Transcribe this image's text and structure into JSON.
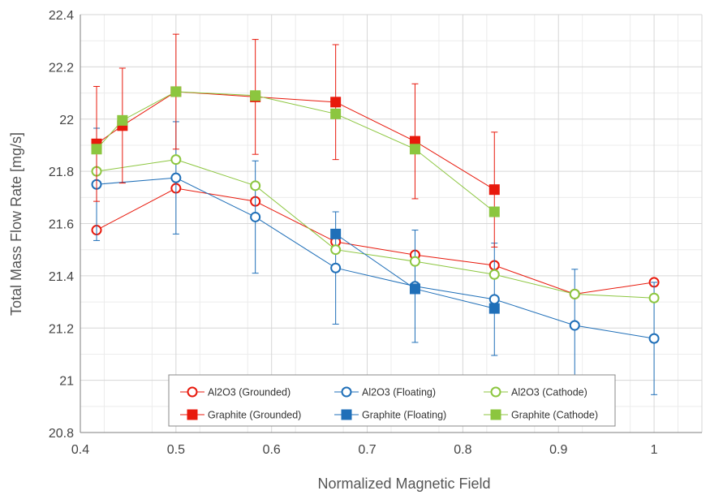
{
  "chart_data": {
    "type": "scatter",
    "title": "",
    "xlabel": "Normalized Magnetic Field",
    "ylabel": "Total Mass Flow Rate [mg/s]",
    "xlim": [
      0.4,
      1.05
    ],
    "ylim": [
      20.8,
      22.4
    ],
    "xticks": [
      0.4,
      0.5,
      0.6,
      0.7,
      0.8,
      0.9,
      1.0
    ],
    "xtick_labels": [
      "0.4",
      "0.5",
      "0.6",
      "0.7",
      "0.8",
      "0.9",
      "1"
    ],
    "yticks": [
      20.8,
      21.0,
      21.2,
      21.4,
      21.6,
      21.8,
      22.0,
      22.2,
      22.4
    ],
    "ytick_labels": [
      "20.8",
      "21",
      "21.2",
      "21.4",
      "21.6",
      "21.8",
      "22",
      "22.2",
      "22.4"
    ],
    "grid": true,
    "legend_position": "bottom-center",
    "series": [
      {
        "name": "Al2O3 (Grounded)",
        "color": "#e8190c",
        "marker": "open-circle",
        "x": [
          0.417,
          0.5,
          0.583,
          0.667,
          0.75,
          0.833,
          0.917,
          1.0
        ],
        "y": [
          21.575,
          21.735,
          21.685,
          21.53,
          21.48,
          21.44,
          21.33,
          21.375
        ],
        "err": [
          null,
          null,
          null,
          null,
          null,
          null,
          null,
          null
        ]
      },
      {
        "name": "Al2O3 (Floating)",
        "color": "#1f6fb8",
        "marker": "open-circle",
        "x": [
          0.417,
          0.5,
          0.583,
          0.667,
          0.75,
          0.833,
          0.917,
          1.0
        ],
        "y": [
          21.75,
          21.775,
          21.625,
          21.43,
          21.36,
          21.31,
          21.21,
          21.16
        ],
        "err": [
          0.215,
          0.215,
          0.215,
          0.215,
          0.215,
          0.215,
          0.215,
          0.215
        ]
      },
      {
        "name": "Al2O3 (Cathode)",
        "color": "#8cc63f",
        "marker": "open-circle",
        "x": [
          0.417,
          0.5,
          0.583,
          0.667,
          0.75,
          0.833,
          0.917,
          1.0
        ],
        "y": [
          21.8,
          21.845,
          21.745,
          21.5,
          21.455,
          21.405,
          21.33,
          21.315
        ],
        "err": [
          null,
          null,
          null,
          null,
          null,
          null,
          null,
          null
        ]
      },
      {
        "name": "Graphite (Grounded)",
        "color": "#e8190c",
        "marker": "filled-square",
        "x": [
          0.417,
          0.444,
          0.5,
          0.583,
          0.667,
          0.75,
          0.833
        ],
        "y": [
          21.905,
          21.975,
          22.105,
          22.085,
          22.065,
          21.915,
          21.73
        ],
        "err": [
          0.22,
          0.22,
          0.22,
          0.22,
          0.22,
          0.22,
          0.22
        ]
      },
      {
        "name": "Graphite (Floating)",
        "color": "#1f6fb8",
        "marker": "filled-square",
        "x": [
          0.667,
          0.75,
          0.833
        ],
        "y": [
          21.56,
          21.35,
          21.275
        ],
        "err": [
          null,
          null,
          null
        ]
      },
      {
        "name": "Graphite (Cathode)",
        "color": "#8cc63f",
        "marker": "filled-square",
        "x": [
          0.417,
          0.444,
          0.5,
          0.583,
          0.667,
          0.75,
          0.833
        ],
        "y": [
          21.885,
          21.995,
          22.105,
          22.09,
          22.02,
          21.885,
          21.645
        ],
        "err": [
          null,
          null,
          null,
          null,
          null,
          null,
          null
        ]
      }
    ]
  }
}
